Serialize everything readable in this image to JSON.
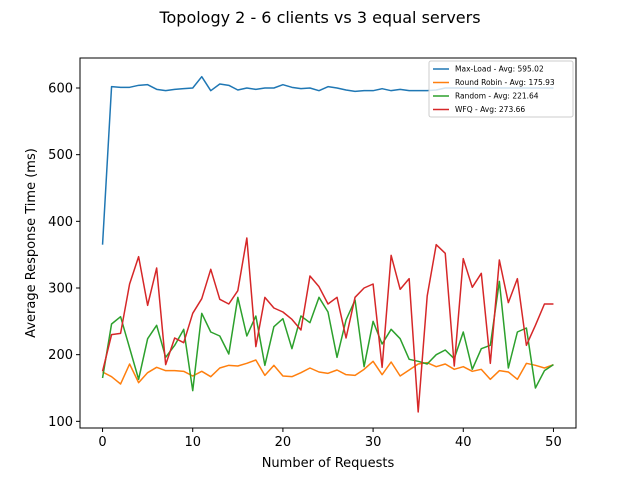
{
  "chart_data": {
    "type": "line",
    "title": "Topology 2 - 6 clients vs 3 equal servers",
    "xlabel": "Number of Requests",
    "ylabel": "Average Response Time (ms)",
    "xlim": [
      -2.5,
      52.5
    ],
    "ylim": [
      90,
      645
    ],
    "xticks": [
      0,
      10,
      20,
      30,
      40,
      50
    ],
    "yticks": [
      100,
      200,
      300,
      400,
      500,
      600
    ],
    "grid": false,
    "legend_position": "top-right",
    "x": [
      0,
      1,
      2,
      3,
      4,
      5,
      6,
      7,
      8,
      9,
      10,
      11,
      12,
      13,
      14,
      15,
      16,
      17,
      18,
      19,
      20,
      21,
      22,
      23,
      24,
      25,
      26,
      27,
      28,
      29,
      30,
      31,
      32,
      33,
      34,
      35,
      36,
      37,
      38,
      39,
      40,
      41,
      42,
      43,
      44,
      45,
      46,
      47,
      48,
      49,
      50
    ],
    "series": [
      {
        "name": "Max-Load - Avg: 595.02",
        "color": "#1f77b4",
        "values": [
          365,
          602,
          601,
          601,
          604,
          605,
          598,
          596,
          598,
          599,
          600,
          617,
          596,
          606,
          604,
          597,
          600,
          598,
          600,
          600,
          605,
          601,
          599,
          600,
          596,
          602,
          600,
          597,
          595,
          596,
          596,
          599,
          596,
          598,
          596,
          596,
          596,
          597,
          600,
          600,
          600,
          600,
          600,
          600,
          600,
          600,
          600,
          600,
          600,
          600,
          600
        ]
      },
      {
        "name": "Round Robin - Avg: 175.93",
        "color": "#ff7f0e",
        "values": [
          174,
          167,
          156,
          186,
          158,
          173,
          181,
          176,
          176,
          175,
          168,
          175,
          167,
          180,
          184,
          183,
          187,
          192,
          169,
          184,
          168,
          167,
          173,
          180,
          174,
          172,
          177,
          170,
          169,
          178,
          190,
          170,
          189,
          168,
          177,
          186,
          188,
          182,
          186,
          178,
          182,
          175,
          178,
          163,
          176,
          174,
          163,
          187,
          184,
          180,
          185
        ]
      },
      {
        "name": "Random - Avg: 221.64",
        "color": "#2ca02c",
        "values": [
          165,
          246,
          257,
          210,
          163,
          224,
          244,
          196,
          214,
          238,
          146,
          262,
          234,
          228,
          201,
          286,
          228,
          258,
          184,
          242,
          254,
          209,
          258,
          248,
          286,
          264,
          196,
          252,
          282,
          182,
          250,
          216,
          238,
          224,
          193,
          190,
          186,
          200,
          207,
          194,
          234,
          178,
          209,
          214,
          310,
          180,
          234,
          240,
          150,
          176,
          185
        ]
      },
      {
        "name": "WFQ - Avg: 273.66",
        "color": "#d62728",
        "values": [
          175,
          230,
          232,
          306,
          347,
          274,
          330,
          185,
          225,
          218,
          262,
          284,
          328,
          283,
          276,
          296,
          375,
          212,
          286,
          270,
          264,
          253,
          237,
          318,
          302,
          276,
          286,
          225,
          286,
          300,
          306,
          181,
          349,
          298,
          314,
          114,
          288,
          365,
          352,
          183,
          344,
          301,
          322,
          187,
          342,
          278,
          314,
          214,
          244,
          276,
          276
        ]
      }
    ]
  }
}
